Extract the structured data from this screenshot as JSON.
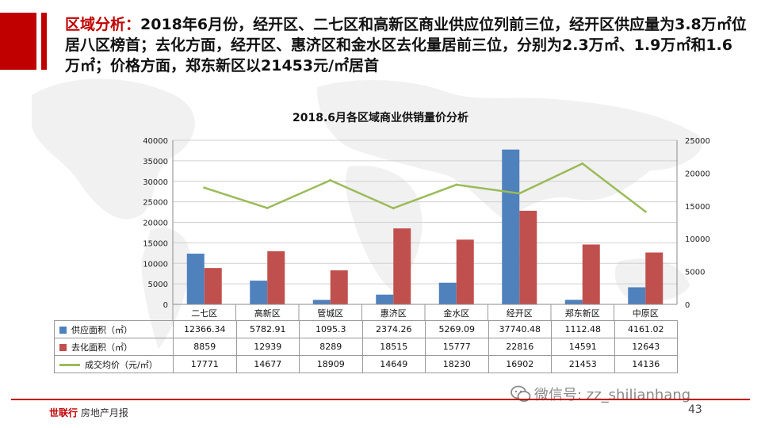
{
  "headline": {
    "label": "区域分析：",
    "text": "2018年6月份，经开区、二七区和高新区商业供应位列前三位，经开区供应量为3.8万㎡位居八区榜首；去化方面，经开区、惠济区和金水区去化量居前三位，分别为2.3万㎡、1.9万㎡和1.6万㎡；价格方面，郑东新区以21453元/㎡居首"
  },
  "chart_data": {
    "type": "bar",
    "title": "2018.6月各区域商业供销量价分析",
    "categories": [
      "二七区",
      "高新区",
      "管城区",
      "惠济区",
      "金水区",
      "经开区",
      "郑东新区",
      "中原区"
    ],
    "series": [
      {
        "name": "供应面积（㎡）",
        "type": "bar",
        "axis": "left",
        "color": "#4f81bd",
        "values": [
          12366.34,
          5782.91,
          1095.3,
          2374.26,
          5269.09,
          37740.48,
          1112.48,
          4161.02
        ],
        "labels": [
          "12366.34",
          "5782.91",
          "1095.3",
          "2374.26",
          "5269.09",
          "37740.48",
          "1112.48",
          "4161.02"
        ]
      },
      {
        "name": "去化面积（㎡）",
        "type": "bar",
        "axis": "left",
        "color": "#c0504d",
        "values": [
          8859,
          12939,
          8289,
          18515,
          15777,
          22816,
          14591,
          12643
        ],
        "labels": [
          "8859",
          "12939",
          "8289",
          "18515",
          "15777",
          "22816",
          "14591",
          "12643"
        ]
      },
      {
        "name": "成交均价（元/㎡）",
        "type": "line",
        "axis": "right",
        "color": "#9bbb59",
        "values": [
          17771,
          14677,
          18909,
          14649,
          18230,
          16902,
          21453,
          14136
        ],
        "labels": [
          "17771",
          "14677",
          "18909",
          "14649",
          "18230",
          "16902",
          "21453",
          "14136"
        ]
      }
    ],
    "ylim_left": [
      0,
      40000
    ],
    "yticks_left": [
      "0",
      "5000",
      "10000",
      "15000",
      "20000",
      "25000",
      "30000",
      "35000",
      "40000"
    ],
    "ylim_right": [
      0,
      25000
    ],
    "yticks_right": [
      "0",
      "5000",
      "10000",
      "15000",
      "20000",
      "25000"
    ],
    "grid": true,
    "legend": "data-table"
  },
  "watermark": "微信号: zz_shilianhang",
  "footer": {
    "brand": "世联行",
    "label": "房地产月报",
    "page": "43"
  },
  "colors": {
    "accent": "#c00000"
  }
}
